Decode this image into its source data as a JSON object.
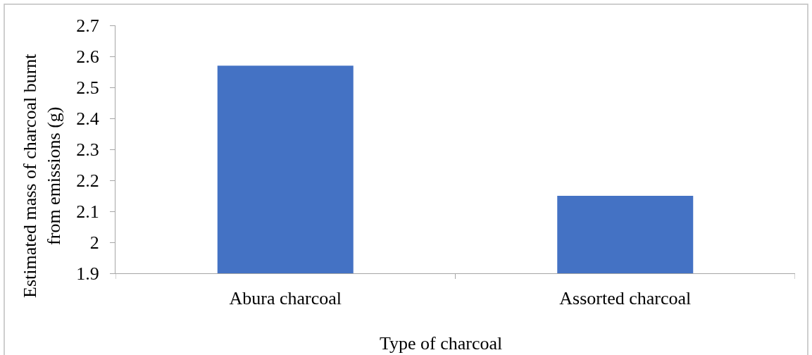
{
  "chart_data": {
    "type": "bar",
    "xlabel": "Type of charcoal",
    "ylabel": "Estimated mass of charcoal burnt from emissions (g)",
    "categories": [
      "Abura charcoal",
      "Assorted charcoal"
    ],
    "values": [
      2.57,
      2.15
    ],
    "color": "#4472c4",
    "ylim": [
      1.9,
      2.7
    ],
    "yticks": [
      1.9,
      2,
      2.1,
      2.2,
      2.3,
      2.4,
      2.5,
      2.6,
      2.7
    ]
  }
}
